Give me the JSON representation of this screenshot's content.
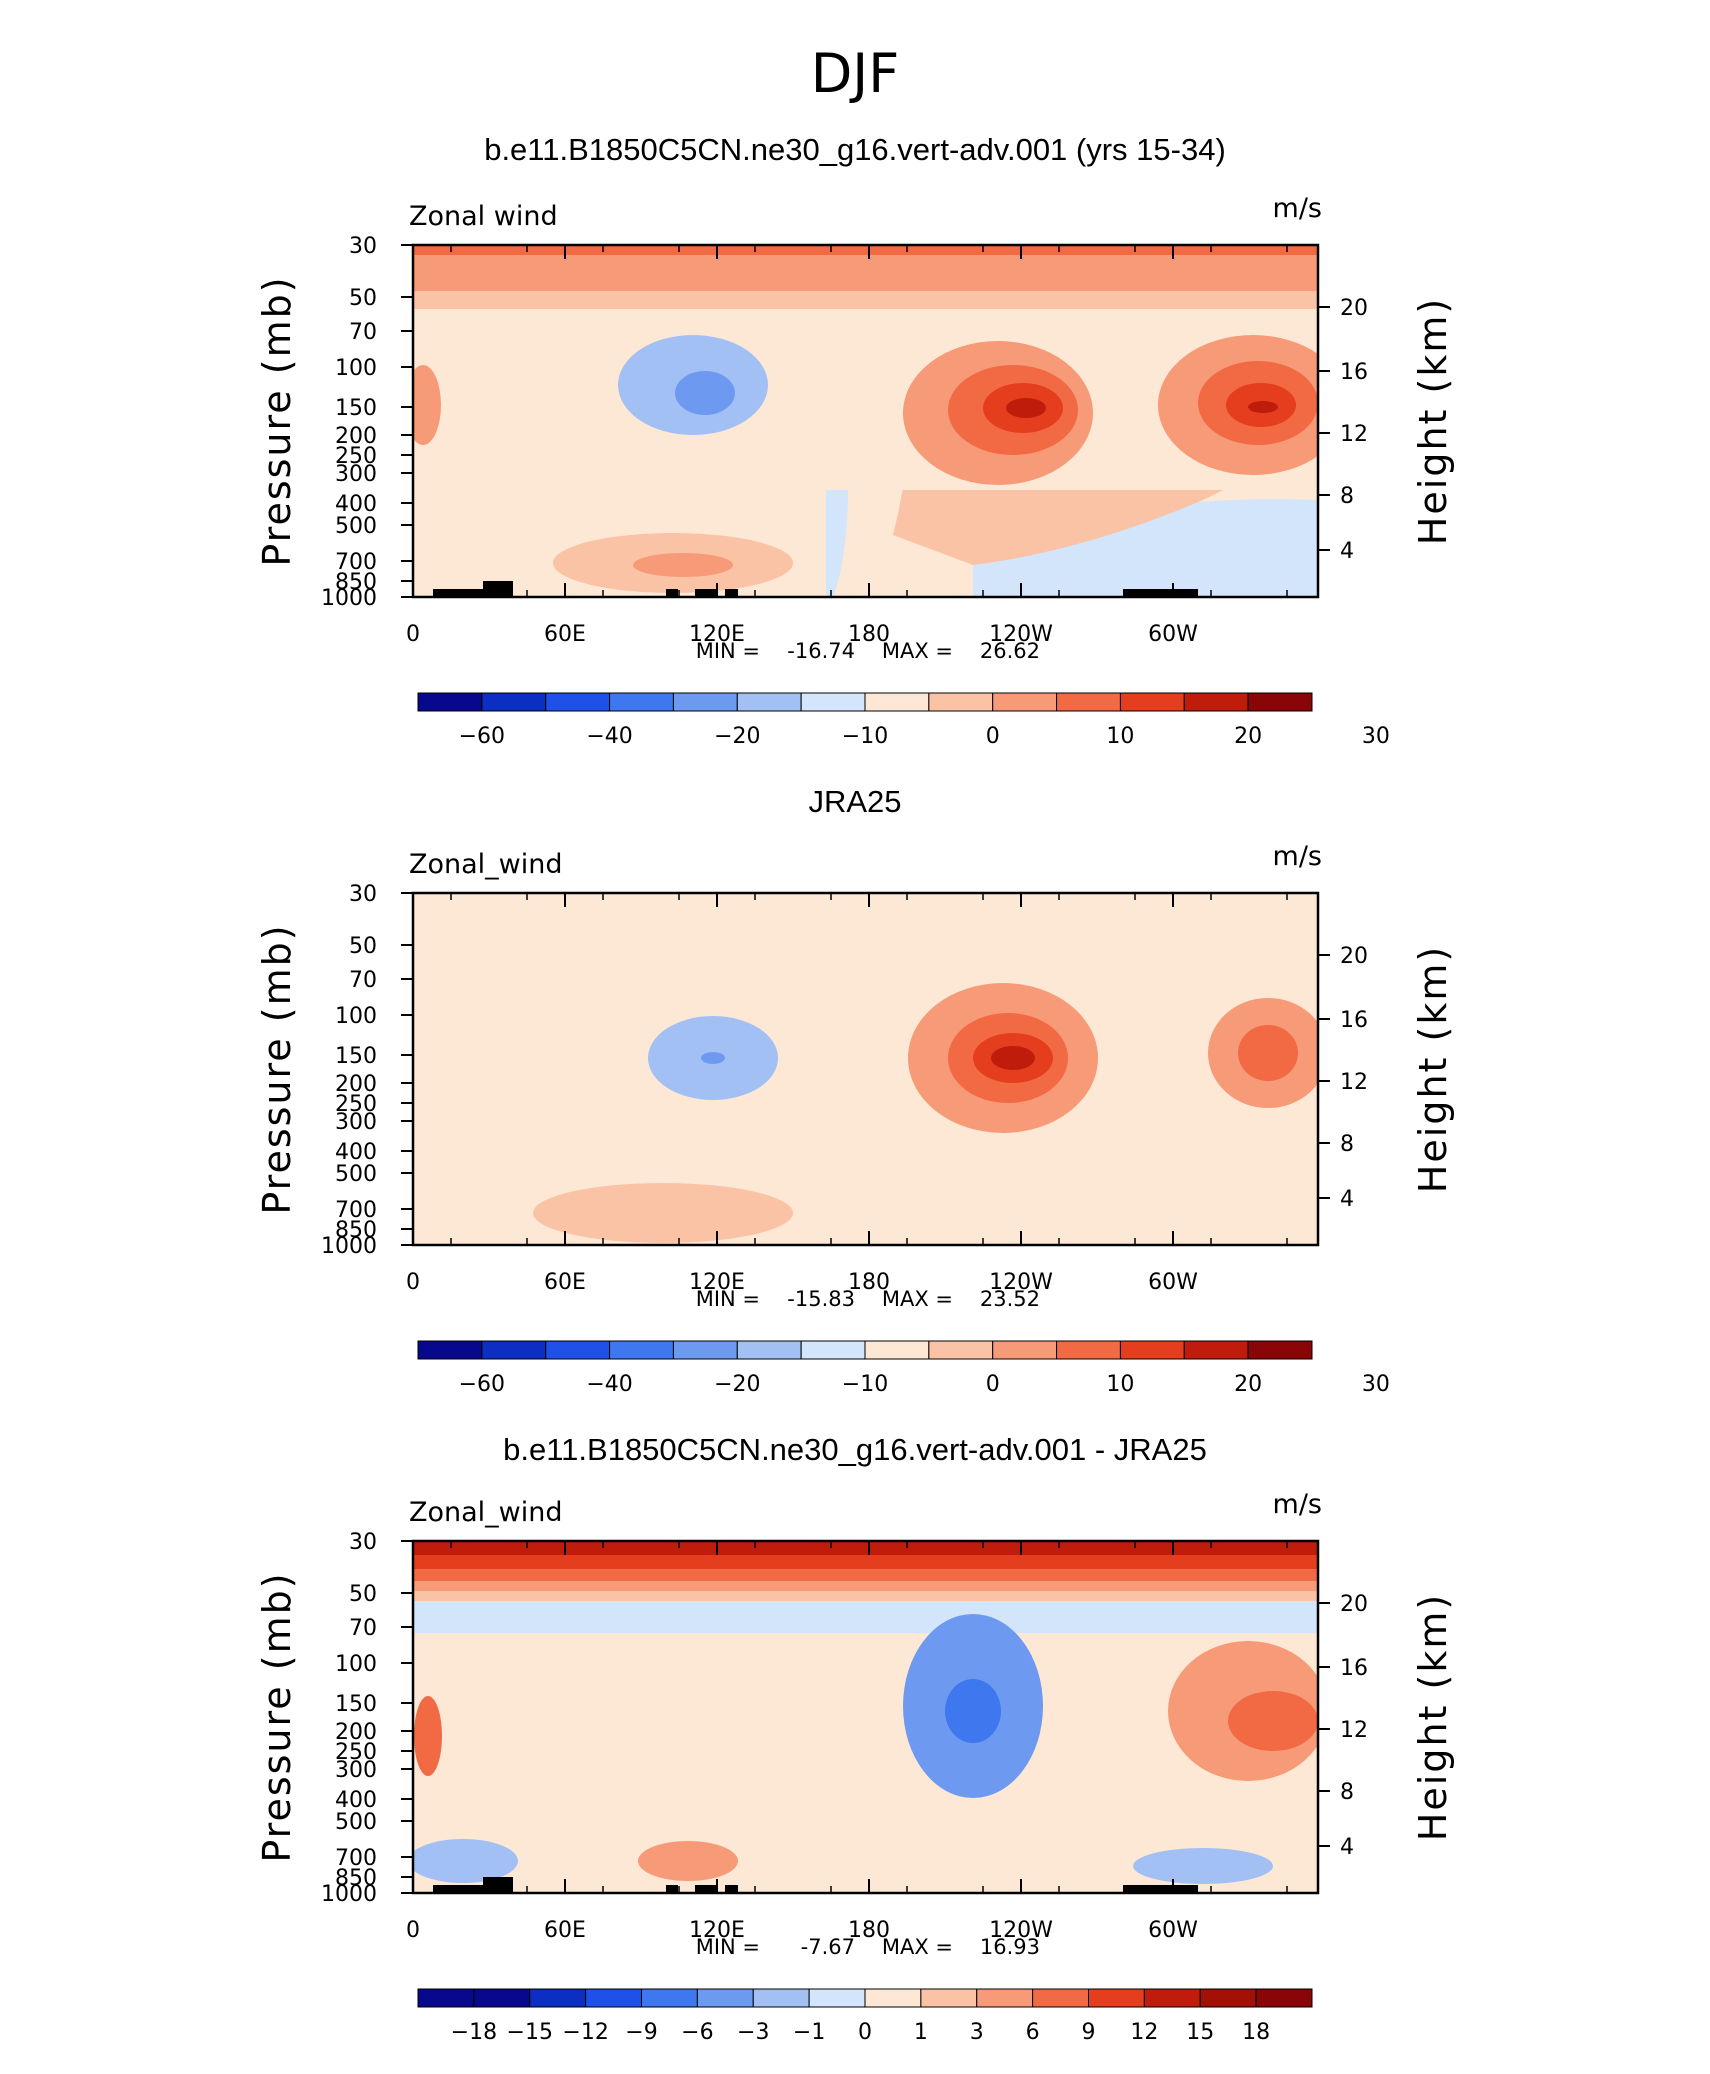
{
  "figure": {
    "title": "DJF"
  },
  "palette": [
    "#08088c",
    "#0d2ec3",
    "#1f50e8",
    "#3f78ee",
    "#6d9af0",
    "#a3c0f5",
    "#d2e5fa",
    "#fde8d6",
    "#fbc3a5",
    "#f79a77",
    "#f26a43",
    "#e53e1e",
    "#bf1c0b",
    "#8a0606"
  ],
  "chart_data": [
    {
      "type": "heatmap",
      "title": "b.e11.B1850C5CN.ne30_g16.vert-adv.001 (yrs 15-34)",
      "left_label": "Zonal wind",
      "units": "m/s",
      "ylabel": "Pressure (mb)",
      "ylabel_right": "Height (km)",
      "x_ticks": [
        "0",
        "60E",
        "120E",
        "180",
        "120W",
        "60W"
      ],
      "y_ticks": [
        "30",
        "50",
        "70",
        "100",
        "150",
        "200",
        "250",
        "300",
        "400",
        "500",
        "700",
        "850",
        "1000"
      ],
      "y_ticks_right": [
        "20",
        "16",
        "12",
        "8",
        "4"
      ],
      "min_label": "MIN =",
      "min": "-16.74",
      "max_label": "MAX =",
      "max": "26.62",
      "colorbar_labels": [
        "-60",
        "-40",
        "-20",
        "-10",
        "0",
        "10",
        "20",
        "30"
      ]
    },
    {
      "type": "heatmap",
      "title": "JRA25",
      "left_label": "Zonal_wind",
      "units": "m/s",
      "ylabel": "Pressure (mb)",
      "ylabel_right": "Height (km)",
      "x_ticks": [
        "0",
        "60E",
        "120E",
        "180",
        "120W",
        "60W"
      ],
      "y_ticks": [
        "30",
        "50",
        "70",
        "100",
        "150",
        "200",
        "250",
        "300",
        "400",
        "500",
        "700",
        "850",
        "1000"
      ],
      "y_ticks_right": [
        "20",
        "16",
        "12",
        "8",
        "4"
      ],
      "min_label": "MIN =",
      "min": "-15.83",
      "max_label": "MAX =",
      "max": "23.52",
      "colorbar_labels": [
        "-60",
        "-40",
        "-20",
        "-10",
        "0",
        "10",
        "20",
        "30"
      ]
    },
    {
      "type": "heatmap",
      "title": "b.e11.B1850C5CN.ne30_g16.vert-adv.001 - JRA25",
      "left_label": "Zonal_wind",
      "units": "m/s",
      "ylabel": "Pressure (mb)",
      "ylabel_right": "Height (km)",
      "x_ticks": [
        "0",
        "60E",
        "120E",
        "180",
        "120W",
        "60W"
      ],
      "y_ticks": [
        "30",
        "50",
        "70",
        "100",
        "150",
        "200",
        "250",
        "300",
        "400",
        "500",
        "700",
        "850",
        "1000"
      ],
      "y_ticks_right": [
        "20",
        "16",
        "12",
        "8",
        "4"
      ],
      "min_label": "MIN =",
      "min": "-7.67",
      "max_label": "MAX =",
      "max": "16.93",
      "colorbar_labels": [
        "-18",
        "-15",
        "-12",
        "-9",
        "-6",
        "-3",
        "-1",
        "0",
        "1",
        "3",
        "6",
        "9",
        "12",
        "15",
        "18"
      ]
    }
  ]
}
